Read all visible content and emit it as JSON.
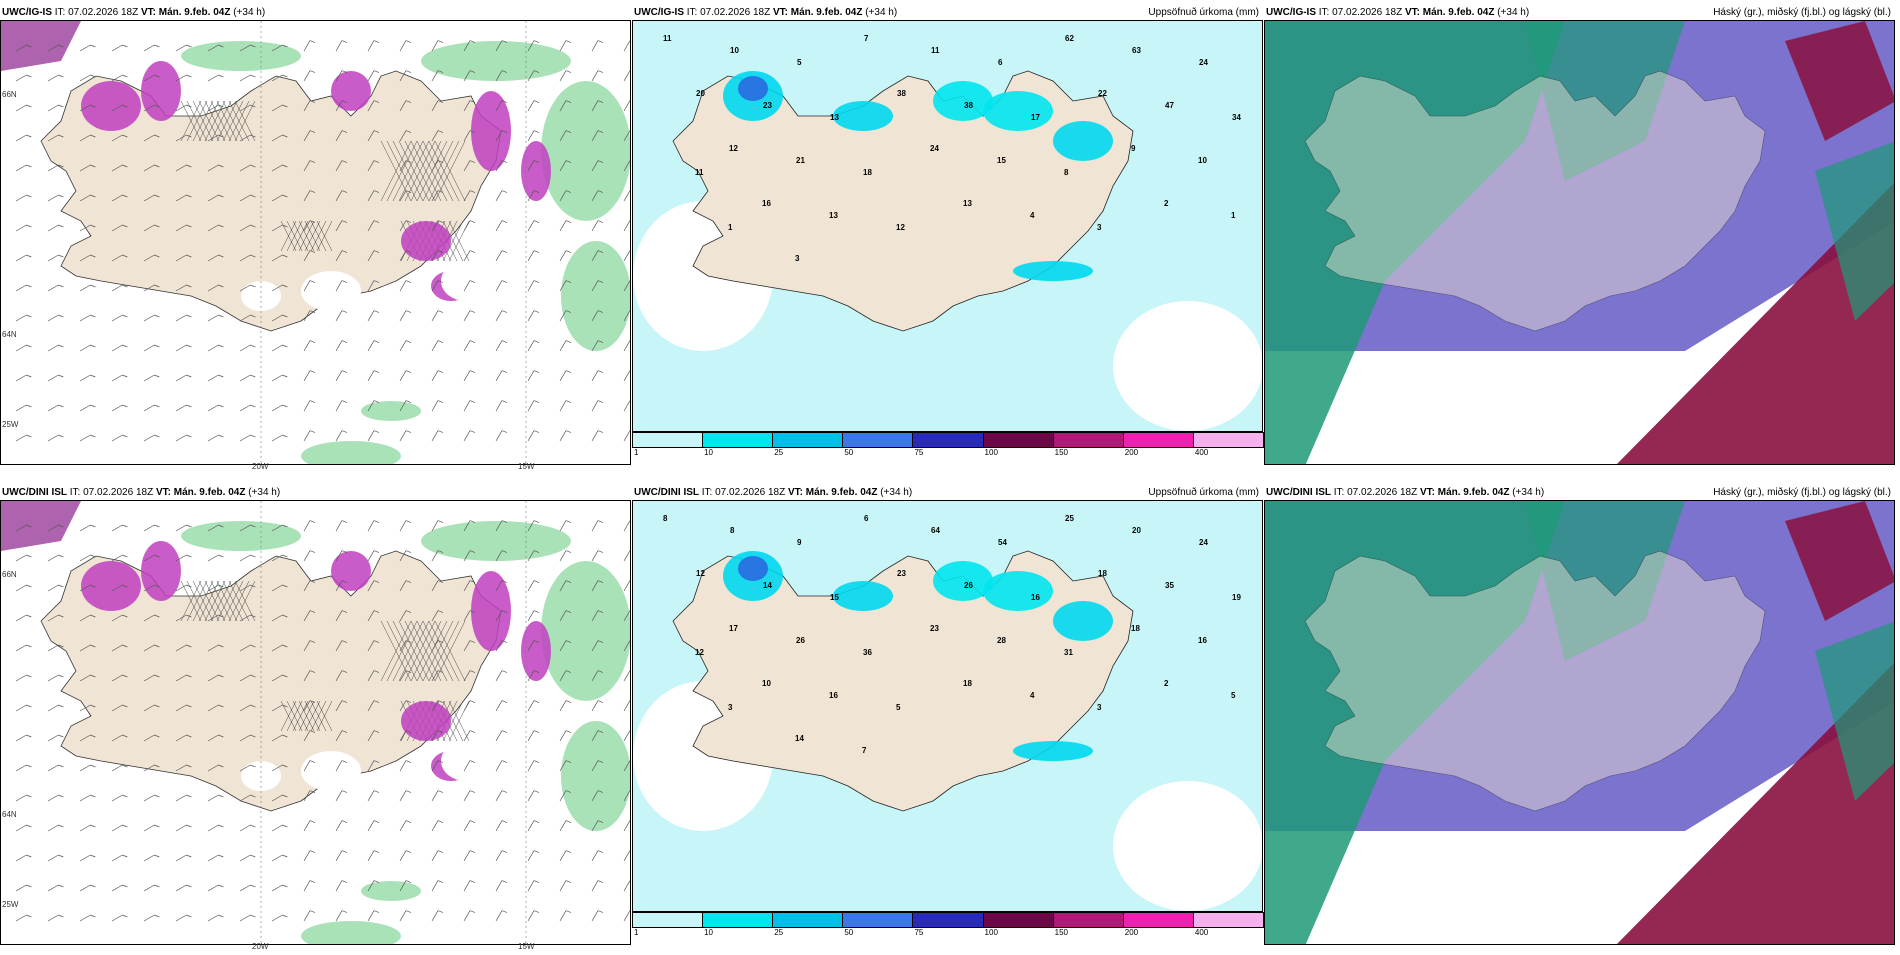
{
  "panels": [
    {
      "model": "UWC/IG-IS",
      "it": "IT: 07.02.2026 18Z",
      "vt": "VT: Mán. 9.feb. 04Z",
      "lead": "(+34 h)",
      "right": ""
    },
    {
      "model": "UWC/IG-IS",
      "it": "IT: 07.02.2026 18Z",
      "vt": "VT: Mán. 9.feb. 04Z",
      "lead": "(+34 h)",
      "right": "Uppsöfnuð úrkoma (mm)"
    },
    {
      "model": "UWC/IG-IS",
      "it": "IT: 07.02.2026 18Z",
      "vt": "VT: Mán. 9.feb. 04Z",
      "lead": "(+34 h)",
      "right": "Háský (gr.), miðský (fj.bl.) og lágský (bl.)"
    },
    {
      "model": "UWC/DINI ISL",
      "it": "IT: 07.02.2026 18Z",
      "vt": "VT: Mán. 9.feb. 04Z",
      "lead": "(+34 h)",
      "right": ""
    },
    {
      "model": "UWC/DINI ISL",
      "it": "IT: 07.02.2026 18Z",
      "vt": "VT: Mán. 9.feb. 04Z",
      "lead": "(+34 h)",
      "right": "Uppsöfnuð úrkoma (mm)"
    },
    {
      "model": "UWC/DINI ISL",
      "it": "IT: 07.02.2026 18Z",
      "vt": "VT: Mán. 9.feb. 04Z",
      "lead": "(+34 h)",
      "right": "Háský (gr.), miðský (fj.bl.) og lágský (bl.)"
    }
  ],
  "axis_labels": {
    "lon1": "20W",
    "lon2": "15W",
    "lon3": "25W",
    "lat1": "66N",
    "lat2": "64N"
  },
  "colorbar": {
    "ticks": [
      "1",
      "10",
      "25",
      "50",
      "75",
      "100",
      "150",
      "200",
      "400"
    ],
    "colors": [
      "#c8f6f8",
      "#00e6ee",
      "#00c0e8",
      "#3a78e8",
      "#2a2ab8",
      "#6a0848",
      "#b01878",
      "#ee20b0",
      "#f6b0ee"
    ]
  },
  "precip_labels_top": [
    "11",
    "10",
    "5",
    "7",
    "11",
    "6",
    "62",
    "63",
    "24",
    "20",
    "23",
    "13",
    "38",
    "38",
    "17",
    "22",
    "47",
    "34",
    "12",
    "21",
    "18",
    "24",
    "15",
    "8",
    "9",
    "10",
    "11",
    "16",
    "13",
    "12",
    "13",
    "4",
    "3",
    "2",
    "1",
    "1",
    "3"
  ],
  "precip_labels_bottom": [
    "8",
    "8",
    "9",
    "6",
    "64",
    "54",
    "25",
    "20",
    "24",
    "12",
    "14",
    "15",
    "23",
    "26",
    "16",
    "18",
    "35",
    "19",
    "17",
    "26",
    "36",
    "23",
    "28",
    "31",
    "18",
    "16",
    "12",
    "10",
    "16",
    "5",
    "18",
    "4",
    "3",
    "2",
    "5",
    "3",
    "14",
    "7"
  ],
  "colors": {
    "land": "#f0e4d4",
    "sea_precip": "#c8f6f8",
    "green": "#8ed8a0",
    "magenta": "#c040c0",
    "cloud_high": "#1e9a78",
    "cloud_mid": "#5a50c0",
    "cloud_low": "#8a1040"
  }
}
